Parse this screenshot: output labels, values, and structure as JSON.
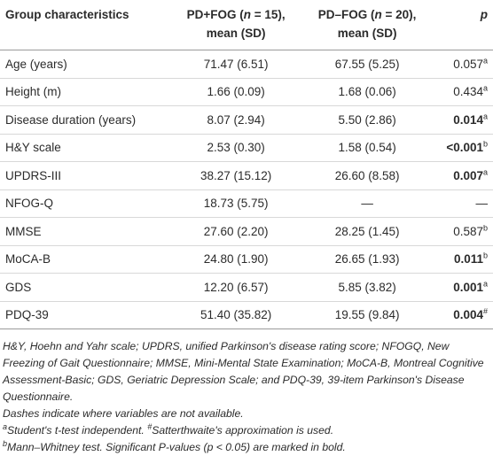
{
  "table": {
    "header": [
      {
        "text": "Group characteristics"
      },
      {
        "pre": "PD+FOG (",
        "var": "n",
        "post": " = 15),",
        "line2": "mean (SD)"
      },
      {
        "pre": "PD–FOG (",
        "var": "n",
        "post": " = 20),",
        "line2": "mean (SD)"
      },
      {
        "text": "p"
      }
    ],
    "rows": [
      [
        "Age (years)",
        "71.47 (6.51)",
        "67.55 (5.25)",
        {
          "value": "0.057",
          "sup": "a",
          "bold": false
        }
      ],
      [
        "Height (m)",
        "1.66 (0.09)",
        "1.68 (0.06)",
        {
          "value": "0.434",
          "sup": "a",
          "bold": false
        }
      ],
      [
        "Disease duration (years)",
        "8.07 (2.94)",
        "5.50 (2.86)",
        {
          "value": "0.014",
          "sup": "a",
          "bold": true
        }
      ],
      [
        "H&Y scale",
        "2.53 (0.30)",
        "1.58 (0.54)",
        {
          "value": "<0.001",
          "sup": "b",
          "bold": true
        }
      ],
      [
        "UPDRS-III",
        "38.27 (15.12)",
        "26.60 (8.58)",
        {
          "value": "0.007",
          "sup": "a",
          "bold": true
        }
      ],
      [
        "NFOG-Q",
        "18.73 (5.75)",
        "—",
        {
          "value": "—",
          "bold": false
        }
      ],
      [
        "MMSE",
        "27.60 (2.20)",
        "28.25 (1.45)",
        {
          "value": "0.587",
          "sup": "b",
          "bold": false
        }
      ],
      [
        "MoCA-B",
        "24.80 (1.90)",
        "26.65 (1.93)",
        {
          "value": "0.011",
          "sup": "b",
          "bold": true
        }
      ],
      [
        "GDS",
        "12.20 (6.57)",
        "5.85 (3.82)",
        {
          "value": "0.001",
          "sup": "a",
          "bold": true
        }
      ],
      [
        "PDQ-39",
        "51.40 (35.82)",
        "19.55 (9.84)",
        {
          "value": "0.004",
          "sup": "#",
          "bold": true
        }
      ]
    ]
  },
  "footnotes": [
    [
      {
        "text": "H&Y, Hoehn and Yahr scale; UPDRS, unified Parkinson's disease rating score; NFOGQ, New Freezing of Gait Questionnaire; MMSE, Mini-Mental State Examination; MoCA-B, Montreal Cognitive Assessment-Basic; GDS, Geriatric Depression Scale; and PDQ-39, 39-item Parkinson's Disease Questionnaire."
      }
    ],
    [
      {
        "text": "Dashes indicate where variables are not available."
      }
    ],
    [
      {
        "sup": "a"
      },
      {
        "text": "Student's t-test independent. "
      },
      {
        "sup": "#"
      },
      {
        "text": "Satterthwaite's approximation is used."
      }
    ],
    [
      {
        "sup": "b"
      },
      {
        "text": "Mann–Whitney test. Significant P-values (p < 0.05) are marked in bold."
      }
    ]
  ]
}
